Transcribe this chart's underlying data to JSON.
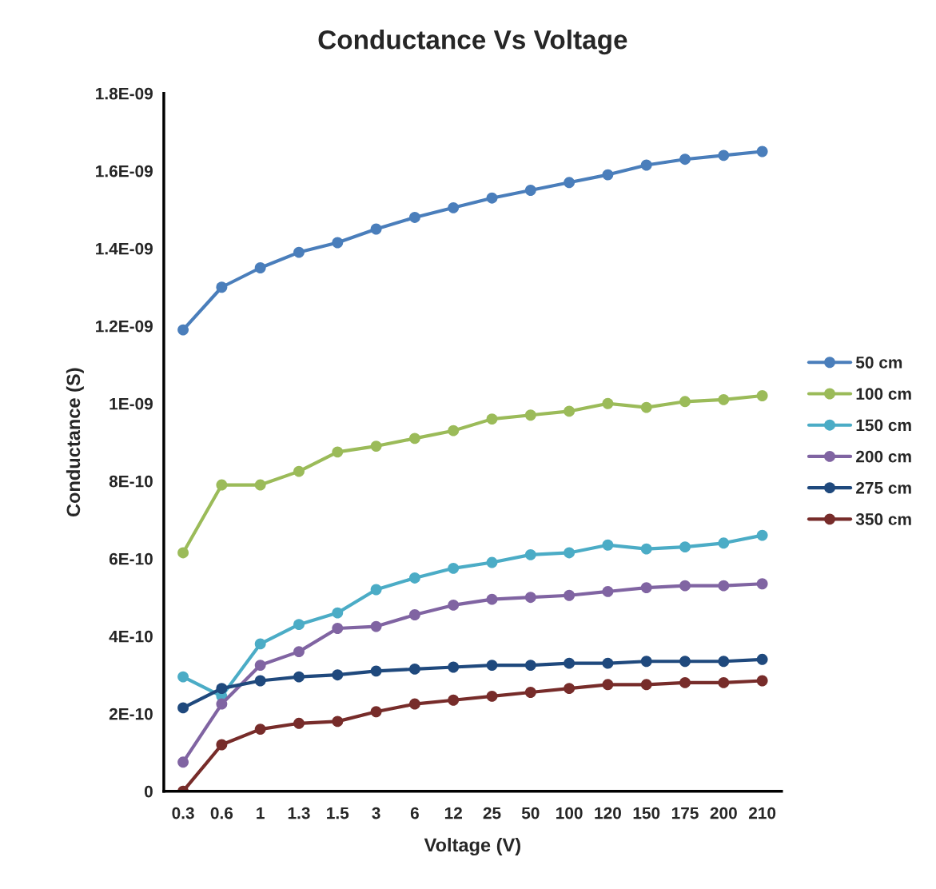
{
  "chart_data": {
    "type": "line",
    "title": "Conductance Vs Voltage",
    "xlabel": "Voltage (V)",
    "ylabel": "Conductance (S)",
    "categories": [
      "0.3",
      "0.6",
      "1",
      "1.3",
      "1.5",
      "3",
      "6",
      "12",
      "25",
      "50",
      "100",
      "120",
      "150",
      "175",
      "200",
      "210"
    ],
    "series": [
      {
        "name": "50 cm",
        "color": "#4a7ebb",
        "values": [
          1.19e-09,
          1.3e-09,
          1.35e-09,
          1.39e-09,
          1.415e-09,
          1.45e-09,
          1.48e-09,
          1.505e-09,
          1.53e-09,
          1.55e-09,
          1.57e-09,
          1.59e-09,
          1.615e-09,
          1.63e-09,
          1.64e-09,
          1.65e-09
        ]
      },
      {
        "name": "100 cm",
        "color": "#9bbb59",
        "values": [
          6.15e-10,
          7.9e-10,
          7.9e-10,
          8.25e-10,
          8.75e-10,
          8.9e-10,
          9.1e-10,
          9.3e-10,
          9.6e-10,
          9.7e-10,
          9.8e-10,
          1e-09,
          9.9e-10,
          1.005e-09,
          1.01e-09,
          1.02e-09
        ]
      },
      {
        "name": "150 cm",
        "color": "#4bacc6",
        "values": [
          2.95e-10,
          2.45e-10,
          3.8e-10,
          4.3e-10,
          4.6e-10,
          5.2e-10,
          5.5e-10,
          5.75e-10,
          5.9e-10,
          6.1e-10,
          6.15e-10,
          6.35e-10,
          6.25e-10,
          6.3e-10,
          6.4e-10,
          6.6e-10
        ]
      },
      {
        "name": "200 cm",
        "color": "#8064a2",
        "values": [
          7.5e-11,
          2.25e-10,
          3.25e-10,
          3.6e-10,
          4.2e-10,
          4.25e-10,
          4.55e-10,
          4.8e-10,
          4.95e-10,
          5e-10,
          5.05e-10,
          5.15e-10,
          5.25e-10,
          5.3e-10,
          5.3e-10,
          5.35e-10
        ]
      },
      {
        "name": "275 cm",
        "color": "#1f497d",
        "values": [
          2.15e-10,
          2.65e-10,
          2.85e-10,
          2.95e-10,
          3e-10,
          3.1e-10,
          3.15e-10,
          3.2e-10,
          3.25e-10,
          3.25e-10,
          3.3e-10,
          3.3e-10,
          3.35e-10,
          3.35e-10,
          3.35e-10,
          3.4e-10
        ]
      },
      {
        "name": "350 cm",
        "color": "#772c2a",
        "values": [
          0,
          1.2e-10,
          1.6e-10,
          1.75e-10,
          1.8e-10,
          2.05e-10,
          2.25e-10,
          2.35e-10,
          2.45e-10,
          2.55e-10,
          2.65e-10,
          2.75e-10,
          2.75e-10,
          2.8e-10,
          2.8e-10,
          2.85e-10
        ]
      }
    ],
    "ylim": [
      0,
      1.8e-09
    ],
    "yticks": [
      0,
      {
        "value": 2e-10,
        "label": "2E-10"
      },
      {
        "value": 4e-10,
        "label": "4E-10"
      },
      {
        "value": 6e-10,
        "label": "6E-10"
      },
      {
        "value": 8e-10,
        "label": "8E-10"
      },
      {
        "value": 1e-09,
        "label": "1E-09"
      },
      {
        "value": 1.2e-09,
        "label": "1.2E-09"
      },
      {
        "value": 1.4e-09,
        "label": "1.4E-09"
      },
      {
        "value": 1.6e-09,
        "label": "1.6E-09"
      },
      {
        "value": 1.8e-09,
        "label": "1.8E-09"
      }
    ],
    "grid": false,
    "legend": "right",
    "marker": "circle",
    "line_style": "solid"
  }
}
